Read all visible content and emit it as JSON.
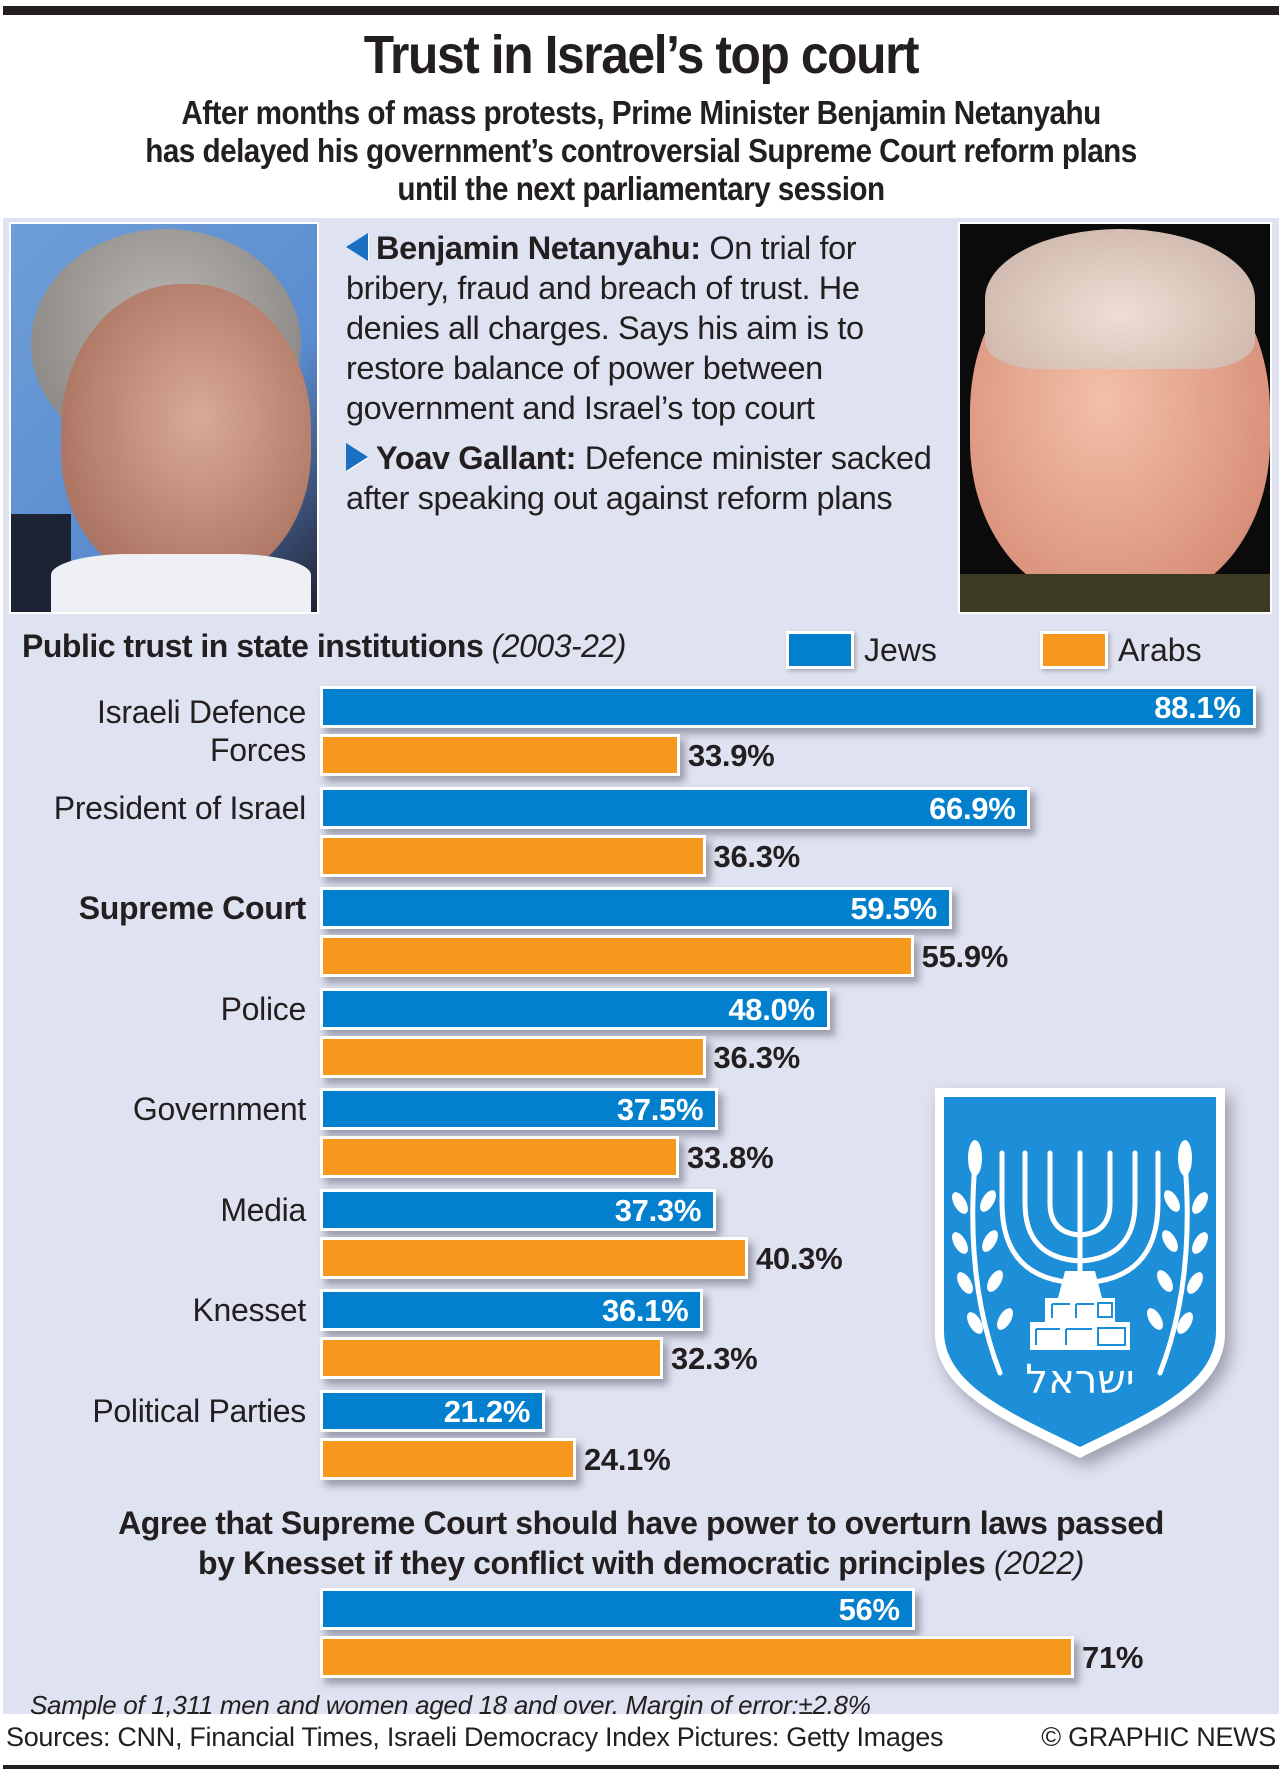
{
  "headline": "Trust in Israel’s top court",
  "subhead": [
    "After months of mass protests, Prime Minister Benjamin Netanyahu",
    "has delayed his government’s controversial Supreme Court reform plans",
    "until the next parliamentary session"
  ],
  "photos": {
    "left": "Benjamin Netanyahu photo",
    "right": "Yoav Gallant photo"
  },
  "bios": [
    {
      "pointer_icon": "triangle-left-icon",
      "name": "Benjamin Netanyahu:",
      "text": " On trial for bribery, fraud and breach of trust. He denies all charges. Says his aim is to restore balance of power between government and Israel’s top court"
    },
    {
      "pointer_icon": "triangle-right-icon",
      "name": "Yoav Gallant:",
      "text": " Defence minister sacked after speaking out against reform plans"
    }
  ],
  "colors": {
    "jews": "#0280ce",
    "arabs": "#f7981e",
    "panel": "#dfe2f0",
    "text": "#231f20"
  },
  "chart_data": [
    {
      "type": "bar",
      "orientation": "horizontal",
      "title": "Public trust in state institutions",
      "title_note": "(2003-22)",
      "legend": [
        "Jews",
        "Arabs"
      ],
      "legend_position": "top-right",
      "categories": [
        "Israeli Defence Forces",
        "President of Israel",
        "Supreme Court",
        "Police",
        "Government",
        "Media",
        "Knesset",
        "Political Parties"
      ],
      "category_label_lines": [
        [
          "Israeli Defence",
          "Forces"
        ],
        [
          "President of Israel"
        ],
        [
          "Supreme Court"
        ],
        [
          "Police"
        ],
        [
          "Government"
        ],
        [
          "Media"
        ],
        [
          "Knesset"
        ],
        [
          "Political Parties"
        ]
      ],
      "highlighted_category": "Supreme Court",
      "series": [
        {
          "name": "Jews",
          "values": [
            88.1,
            66.9,
            59.5,
            48.0,
            37.5,
            37.3,
            36.1,
            21.2
          ],
          "labels": [
            "88.1%",
            "66.9%",
            "59.5%",
            "48.0%",
            "37.5%",
            "37.3%",
            "36.1%",
            "21.2%"
          ]
        },
        {
          "name": "Arabs",
          "values": [
            33.9,
            36.3,
            55.9,
            36.3,
            33.8,
            40.3,
            32.3,
            24.1
          ],
          "labels": [
            "33.9%",
            "36.3%",
            "55.9%",
            "36.3%",
            "33.8%",
            "40.3%",
            "32.3%",
            "24.1%"
          ]
        }
      ],
      "unit": "%",
      "xlim": [
        0,
        100
      ],
      "grid": false
    },
    {
      "type": "bar",
      "orientation": "horizontal",
      "title": "Agree that Supreme Court should have power to overturn laws passed by Knesset if they conflict with democratic principles",
      "title_lines": [
        "Agree that Supreme Court should have power to overturn laws passed",
        "by Knesset if they conflict with democratic principles"
      ],
      "title_note": "(2022)",
      "categories": [
        ""
      ],
      "series": [
        {
          "name": "Jews",
          "values": [
            56
          ],
          "labels": [
            "56%"
          ]
        },
        {
          "name": "Arabs",
          "values": [
            71
          ],
          "labels": [
            "71%"
          ]
        }
      ],
      "unit": "%",
      "xlim": [
        0,
        100
      ],
      "grid": false
    }
  ],
  "emblem": {
    "name": "Emblem of Israel",
    "hebrew_text": "ישראל"
  },
  "sample_note": "Sample of 1,311 men and women aged 18 and over. Margin of error:±2.8%",
  "footer": {
    "sources": "Sources: CNN, Financial Times, Israeli Democracy Index  Pictures: Getty Images",
    "credit": "© GRAPHIC NEWS"
  }
}
